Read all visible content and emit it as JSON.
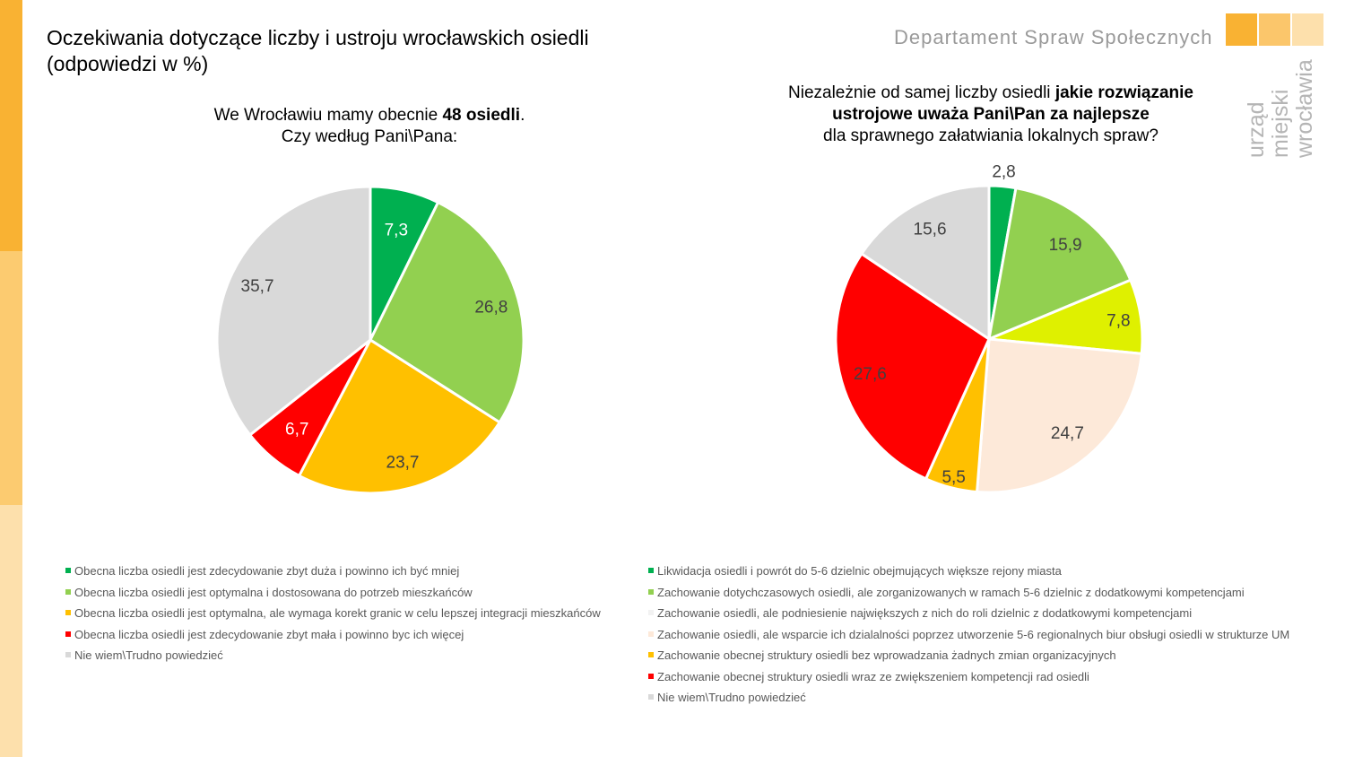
{
  "header": {
    "title_line1": "Oczekiwania dotyczące liczby i ustroju wrocławskich osiedli",
    "title_line2": "(odpowiedzi w %)",
    "department": "Departament Spraw Społecznych",
    "logo_text": [
      "urząd",
      "miejski",
      "wrocławia"
    ]
  },
  "chart_data": [
    {
      "type": "pie",
      "title_parts": [
        "We Wrocławiu mamy obecnie ",
        "48 osiedli",
        ".",
        "Czy według Pani\\Pana:"
      ],
      "labels": [
        "Obecna liczba osiedli jest zdecydowanie zbyt duża i powinno ich być mniej",
        "Obecna liczba osiedli jest optymalna i dostosowana do potrzeb mieszkańców",
        "Obecna liczba osiedli jest optymalna, ale wymaga korekt granic w celu lepszej integracji mieszkańców",
        "Obecna liczba osiedli jest zdecydowanie zbyt mała i powinno byc ich więcej",
        "Nie wiem\\Trudno powiedzieć"
      ],
      "values": [
        7.3,
        26.8,
        23.7,
        6.7,
        35.7
      ],
      "value_labels": [
        "7,3",
        "26,8",
        "23,7",
        "6,7",
        "35,7"
      ],
      "colors": [
        "#00b050",
        "#92d050",
        "#ffc000",
        "#ff0000",
        "#d9d9d9"
      ],
      "label_colors": [
        "#ffffff",
        "#404040",
        "#404040",
        "#ffffff",
        "#404040"
      ]
    },
    {
      "type": "pie",
      "title_parts": [
        "Niezależnie od samej liczby osiedli ",
        "jakie rozwiązanie",
        "ustrojowe uważa Pani\\Pan za najlepsze",
        "dla sprawnego załatwiania lokalnych spraw?"
      ],
      "labels": [
        "Likwidacja osiedli i powrót do 5-6 dzielnic obejmujących większe rejony miasta",
        "Zachowanie dotychczasowych osiedli, ale zorganizowanych w ramach 5-6 dzielnic z dodatkowymi kompetencjami",
        "Zachowanie osiedli, ale podniesienie największych z nich do roli dzielnic z dodatkowymi kompetencjami",
        "Zachowanie osiedli, ale wsparcie ich dzialalności poprzez utworzenie 5-6 regionalnych biur obsługi osiedli w strukturze UM",
        "Zachowanie obecnej struktury osiedli bez wprowadzania żadnych zmian organizacyjnych",
        "Zachowanie obecnej struktury osiedli wraz ze zwiększeniem kompetencji rad osiedli",
        "Nie wiem\\Trudno powiedzieć"
      ],
      "values": [
        2.8,
        15.9,
        7.8,
        24.7,
        5.5,
        27.6,
        15.6
      ],
      "value_labels": [
        "2,8",
        "15,9",
        "7,8",
        "24,7",
        "5,5",
        "27,6",
        "15,6"
      ],
      "colors": [
        "#00b050",
        "#92d050",
        "#dff000",
        "#fde9d9",
        "#ffc000",
        "#ff0000",
        "#d9d9d9"
      ],
      "legend_colors": [
        "#00b050",
        "#92d050",
        "#f2f2f2",
        "#fde9d9",
        "#ffc000",
        "#ff0000",
        "#d9d9d9"
      ],
      "label_colors": [
        "#404040",
        "#404040",
        "#404040",
        "#404040",
        "#404040",
        "#404040",
        "#404040"
      ]
    }
  ]
}
